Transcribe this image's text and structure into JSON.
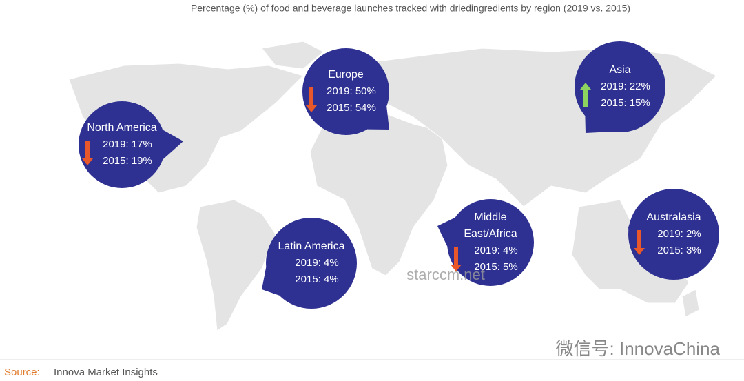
{
  "title": "Percentage (%) of food and beverage launches tracked with driedingredients by region (2019 vs. 2015)",
  "regions": [
    {
      "name_lines": [
        "North America"
      ],
      "lines": [
        "2019: 17%",
        "2015: 19%"
      ],
      "trend": "down"
    },
    {
      "name_lines": [
        "Europe"
      ],
      "lines": [
        "2019: 50%",
        "2015: 54%"
      ],
      "trend": "down"
    },
    {
      "name_lines": [
        "Asia"
      ],
      "lines": [
        "2019: 22%",
        "2015: 15%"
      ],
      "trend": "up"
    },
    {
      "name_lines": [
        "Latin America"
      ],
      "lines": [
        "2019: 4%",
        "2015: 4%"
      ],
      "trend": "none"
    },
    {
      "name_lines": [
        "Middle",
        "East/Africa"
      ],
      "lines": [
        "2019: 4%",
        "2015: 5%"
      ],
      "trend": "down"
    },
    {
      "name_lines": [
        "Australasia"
      ],
      "lines": [
        "2019: 2%",
        "2015: 3%"
      ],
      "trend": "down"
    }
  ],
  "watermarks": [
    "starccm.net",
    "微信号: InnovaChina"
  ],
  "source": {
    "label": "Source:",
    "text": "Innova Market Insights"
  }
}
